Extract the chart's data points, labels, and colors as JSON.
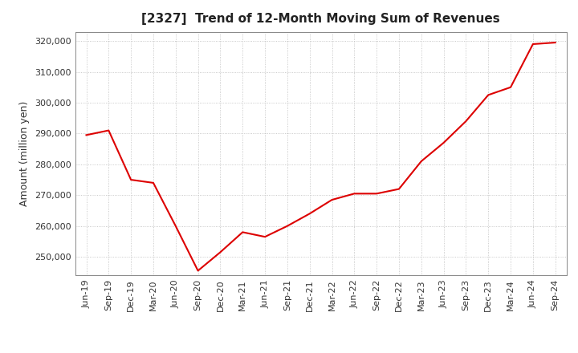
{
  "title": "[2327]  Trend of 12-Month Moving Sum of Revenues",
  "ylabel": "Amount (million yen)",
  "background_color": "#ffffff",
  "grid_color": "#bbbbbb",
  "line_color": "#dd0000",
  "ylim": [
    244000,
    323000
  ],
  "yticks": [
    250000,
    260000,
    270000,
    280000,
    290000,
    300000,
    310000,
    320000
  ],
  "x_labels": [
    "Jun-19",
    "Sep-19",
    "Dec-19",
    "Mar-20",
    "Jun-20",
    "Sep-20",
    "Dec-20",
    "Mar-21",
    "Jun-21",
    "Sep-21",
    "Dec-21",
    "Mar-22",
    "Jun-22",
    "Sep-22",
    "Dec-22",
    "Mar-23",
    "Jun-23",
    "Sep-23",
    "Dec-23",
    "Mar-24",
    "Jun-24",
    "Sep-24"
  ],
  "values": [
    289500,
    291000,
    275000,
    274000,
    260000,
    245500,
    251500,
    258000,
    256500,
    260000,
    264000,
    268500,
    270500,
    270500,
    272000,
    281000,
    287000,
    294000,
    302500,
    305000,
    319000,
    319500
  ]
}
